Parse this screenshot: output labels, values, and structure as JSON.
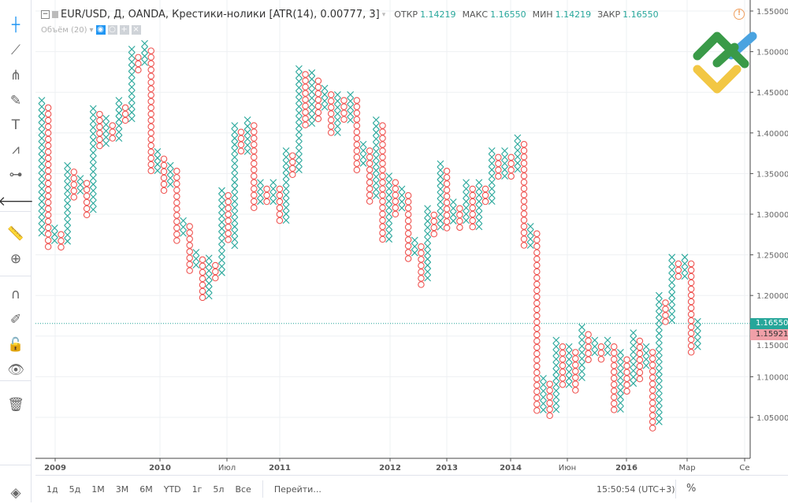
{
  "legend": {
    "symbol": "EUR/USD, Д, OANDA, Крестики-нолики [ATR(14), 0.00777, 3]",
    "open_label": "ОТКР",
    "open": "1.14219",
    "high_label": "МАКС",
    "high": "1.16550",
    "low_label": "МИН",
    "low": "1.14219",
    "close_label": "ЗАКР",
    "close": "1.16550"
  },
  "volume": {
    "label": "Объём (20)"
  },
  "toolbar_icons": [
    "crosshair-icon",
    "trend-line-icon",
    "pitchfork-icon",
    "brush-icon",
    "text-icon",
    "pattern-icon",
    "prediction-icon",
    "back-arrow-icon",
    "ruler-icon",
    "zoom-in-icon",
    "magnet-icon",
    "lock-drawing-icon",
    "lock-icon",
    "eye-icon",
    "trash-icon",
    "layers-icon"
  ],
  "price_labels": {
    "last": "1.16550",
    "prev": "1.15921"
  },
  "colors": {
    "x": "#26a69a",
    "o": "#ef5350",
    "last_bg": "#26a69a",
    "prev_bg": "#f0a0a8",
    "logo_green": "#3a9a48",
    "logo_yellow": "#f2c744",
    "logo_blue": "#4aa3e0"
  },
  "bottom": {
    "ranges": [
      "1д",
      "5д",
      "1М",
      "3М",
      "6М",
      "YTD",
      "1г",
      "5л",
      "Все"
    ],
    "goto": "Перейти...",
    "clock": "15:50:54 (UTC+3)",
    "percent": "%"
  },
  "chart_data": {
    "type": "point-and-figure",
    "box_size": 0.00777,
    "reversal": 3,
    "ylim": [
      1.03,
      1.56
    ],
    "y_ticks": [
      "1.55000",
      "1.50000",
      "1.45000",
      "1.40000",
      "1.35000",
      "1.30000",
      "1.25000",
      "1.20000",
      "1.15000",
      "1.10000",
      "1.05000"
    ],
    "x_ticks": [
      "2009",
      "2010",
      "Июл",
      "2011",
      "2012",
      "2013",
      "2014",
      "Июн",
      "2016",
      "Мар",
      "Се"
    ],
    "grid": true,
    "last_price": 1.1655,
    "columns": [
      [
        "X",
        1.44,
        1.273
      ],
      [
        "O",
        1.431,
        1.258
      ],
      [
        "X",
        1.283,
        1.265
      ],
      [
        "O",
        1.275,
        1.258
      ],
      [
        "X",
        1.36,
        1.266
      ],
      [
        "O",
        1.352,
        1.321
      ],
      [
        "X",
        1.344,
        1.328
      ],
      [
        "O",
        1.338,
        1.297
      ],
      [
        "X",
        1.43,
        1.304
      ],
      [
        "O",
        1.423,
        1.382
      ],
      [
        "X",
        1.418,
        1.389
      ],
      [
        "O",
        1.409,
        1.391
      ],
      [
        "X",
        1.44,
        1.397
      ],
      [
        "O",
        1.431,
        1.413
      ],
      [
        "X",
        1.503,
        1.42
      ],
      [
        "O",
        1.493,
        1.476
      ],
      [
        "X",
        1.51,
        1.483
      ],
      [
        "O",
        1.501,
        1.352
      ],
      [
        "X",
        1.377,
        1.357
      ],
      [
        "O",
        1.368,
        1.328
      ],
      [
        "X",
        1.36,
        1.334
      ],
      [
        "O",
        1.353,
        1.266
      ],
      [
        "X",
        1.292,
        1.273
      ],
      [
        "O",
        1.285,
        1.227
      ],
      [
        "X",
        1.253,
        1.234
      ],
      [
        "O",
        1.244,
        1.195
      ],
      [
        "X",
        1.246,
        1.202
      ],
      [
        "O",
        1.237,
        1.22
      ],
      [
        "X",
        1.329,
        1.227
      ],
      [
        "O",
        1.323,
        1.265
      ],
      [
        "X",
        1.409,
        1.26
      ],
      [
        "O",
        1.401,
        1.375
      ],
      [
        "X",
        1.416,
        1.381
      ],
      [
        "O",
        1.409,
        1.305
      ],
      [
        "X",
        1.339,
        1.312
      ],
      [
        "O",
        1.331,
        1.312
      ],
      [
        "X",
        1.339,
        1.318
      ],
      [
        "O",
        1.331,
        1.289
      ],
      [
        "X",
        1.378,
        1.295
      ],
      [
        "O",
        1.372,
        1.35
      ],
      [
        "X",
        1.479,
        1.357
      ],
      [
        "O",
        1.472,
        1.406
      ],
      [
        "X",
        1.474,
        1.411
      ],
      [
        "O",
        1.464,
        1.42
      ],
      [
        "X",
        1.455,
        1.428
      ],
      [
        "O",
        1.447,
        1.397
      ],
      [
        "X",
        1.447,
        1.404
      ],
      [
        "O",
        1.44,
        1.413
      ],
      [
        "X",
        1.447,
        1.418
      ],
      [
        "O",
        1.44,
        1.358
      ],
      [
        "X",
        1.386,
        1.365
      ],
      [
        "O",
        1.378,
        1.319
      ],
      [
        "X",
        1.416,
        1.326
      ],
      [
        "O",
        1.409,
        1.266
      ],
      [
        "X",
        1.347,
        1.273
      ],
      [
        "O",
        1.339,
        1.304
      ],
      [
        "X",
        1.331,
        1.31
      ],
      [
        "O",
        1.323,
        1.244
      ],
      [
        "X",
        1.268,
        1.249
      ],
      [
        "O",
        1.26,
        1.212
      ],
      [
        "X",
        1.307,
        1.218
      ],
      [
        "O",
        1.299,
        1.275
      ],
      [
        "X",
        1.362,
        1.281
      ],
      [
        "O",
        1.353,
        1.281
      ],
      [
        "X",
        1.315,
        1.289
      ],
      [
        "O",
        1.307,
        1.287
      ],
      [
        "X",
        1.339,
        1.294
      ],
      [
        "O",
        1.331,
        1.281
      ],
      [
        "X",
        1.339,
        1.287
      ],
      [
        "O",
        1.331,
        1.312
      ],
      [
        "X",
        1.378,
        1.318
      ],
      [
        "O",
        1.37,
        1.344
      ],
      [
        "X",
        1.378,
        1.349
      ],
      [
        "O",
        1.37,
        1.349
      ],
      [
        "X",
        1.394,
        1.357
      ],
      [
        "O",
        1.386,
        1.258
      ],
      [
        "X",
        1.285,
        1.265
      ],
      [
        "O",
        1.276,
        1.055
      ],
      [
        "X",
        1.098,
        1.062
      ],
      [
        "O",
        1.091,
        1.055
      ],
      [
        "X",
        1.145,
        1.063
      ],
      [
        "O",
        1.137,
        1.087
      ],
      [
        "X",
        1.137,
        1.094
      ],
      [
        "O",
        1.13,
        1.087
      ],
      [
        "X",
        1.161,
        1.101
      ],
      [
        "O",
        1.152,
        1.118
      ],
      [
        "X",
        1.145,
        1.126
      ],
      [
        "O",
        1.137,
        1.118
      ],
      [
        "X",
        1.145,
        1.126
      ],
      [
        "O",
        1.137,
        1.057
      ],
      [
        "X",
        1.13,
        1.063
      ],
      [
        "O",
        1.121,
        1.086
      ],
      [
        "X",
        1.154,
        1.094
      ],
      [
        "O",
        1.144,
        1.101
      ],
      [
        "X",
        1.137,
        1.11
      ],
      [
        "O",
        1.13,
        1.04
      ],
      [
        "X",
        1.2,
        1.047
      ],
      [
        "O",
        1.191,
        1.164
      ],
      [
        "X",
        1.247,
        1.171
      ],
      [
        "O",
        1.239,
        1.22
      ],
      [
        "X",
        1.247,
        1.226
      ],
      [
        "O",
        1.239,
        1.134
      ],
      [
        "X",
        1.168,
        1.14
      ]
    ]
  }
}
